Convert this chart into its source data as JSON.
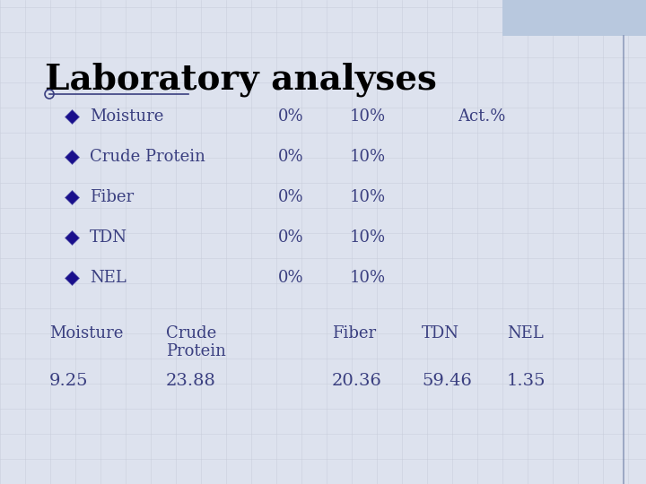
{
  "title": "Laboratory analyses",
  "title_fontsize": 28,
  "title_color": "#000000",
  "title_weight": "bold",
  "bg_color": "#dde2ee",
  "panel_color": "#eef0f7",
  "grid_color": "#c5cad8",
  "bullet_items": [
    "Moisture",
    "Crude Protein",
    "Fiber",
    "TDN",
    "NEL"
  ],
  "col1_vals": [
    "0%",
    "0%",
    "0%",
    "0%",
    "0%"
  ],
  "col2_vals": [
    "10%",
    "10%",
    "10%",
    "10%",
    "10%"
  ],
  "col3_vals": [
    "Act.%",
    "",
    "",
    "",
    ""
  ],
  "table_headers": [
    "Moisture",
    "Crude",
    "Fiber",
    "TDN",
    "NEL"
  ],
  "table_headers2": [
    "",
    "Protein",
    "",
    "",
    ""
  ],
  "table_values": [
    "9.25",
    "23.88",
    "20.36",
    "59.46",
    "1.35"
  ],
  "text_color": "#3a3f80",
  "bullet_color": "#1a0f8c",
  "top_rect_color": "#b8c8de",
  "right_line_color": "#7080a8",
  "font_family": "DejaVu Serif",
  "bullet_fontsize": 13,
  "table_header_fontsize": 13,
  "table_val_fontsize": 14
}
